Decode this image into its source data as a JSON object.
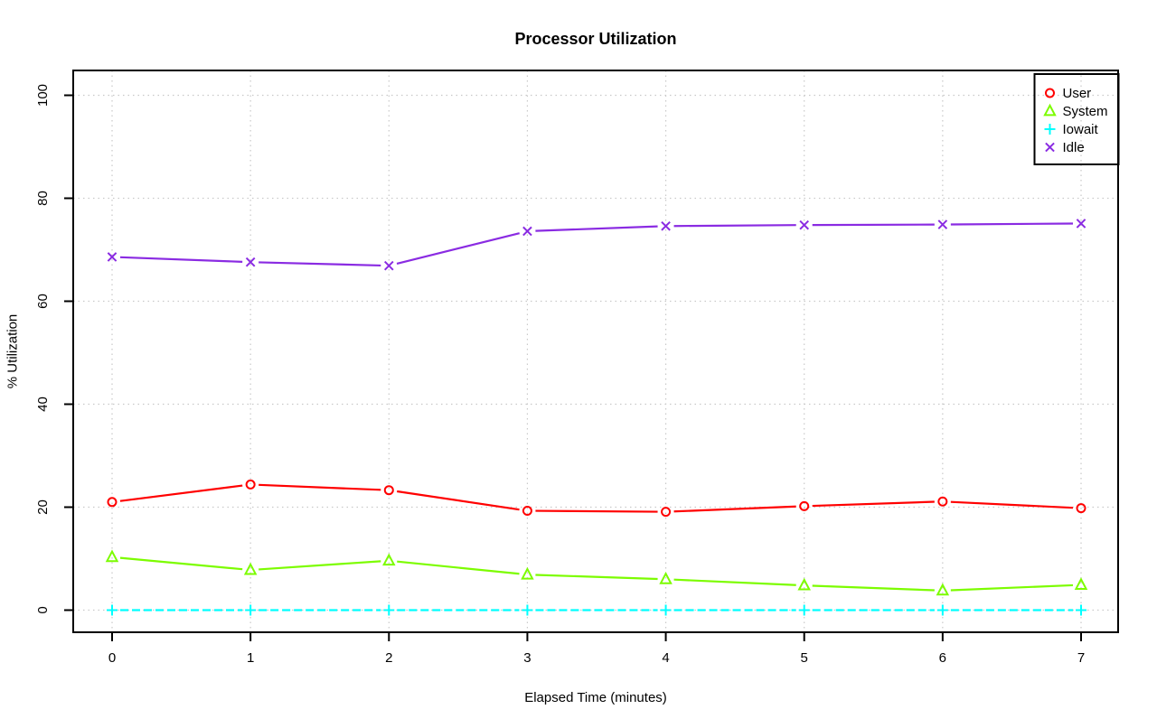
{
  "chart_data": {
    "type": "line",
    "title": "Processor Utilization",
    "xlabel": "Elapsed Time (minutes)",
    "ylabel": "% Utilization",
    "x": [
      0,
      1,
      2,
      3,
      4,
      5,
      6,
      7
    ],
    "xlim": [
      0,
      7
    ],
    "ylim": [
      0,
      100
    ],
    "xticks": [
      0,
      1,
      2,
      3,
      4,
      5,
      6,
      7
    ],
    "yticks": [
      0,
      20,
      40,
      60,
      80,
      100
    ],
    "grid": {
      "style": "dotted",
      "color": "#c9c9c9",
      "both_axes": true
    },
    "legend_position": "top-right",
    "series": [
      {
        "name": "User",
        "color": "#ff0000",
        "marker": "circle",
        "line": "solid",
        "values": [
          21.0,
          24.4,
          23.3,
          19.3,
          19.1,
          20.2,
          21.1,
          19.8
        ]
      },
      {
        "name": "System",
        "color": "#7cfc00",
        "marker": "triangle",
        "line": "solid",
        "values": [
          10.3,
          7.8,
          9.6,
          6.9,
          6.0,
          4.8,
          3.8,
          4.9
        ]
      },
      {
        "name": "Iowait",
        "color": "#00ffff",
        "marker": "plus",
        "line": "dashed",
        "values": [
          0,
          0,
          0,
          0,
          0,
          0,
          0,
          0
        ]
      },
      {
        "name": "Idle",
        "color": "#8a2be2",
        "marker": "x",
        "line": "solid",
        "values": [
          68.6,
          67.6,
          66.9,
          73.6,
          74.6,
          74.8,
          74.9,
          75.1
        ]
      }
    ]
  }
}
